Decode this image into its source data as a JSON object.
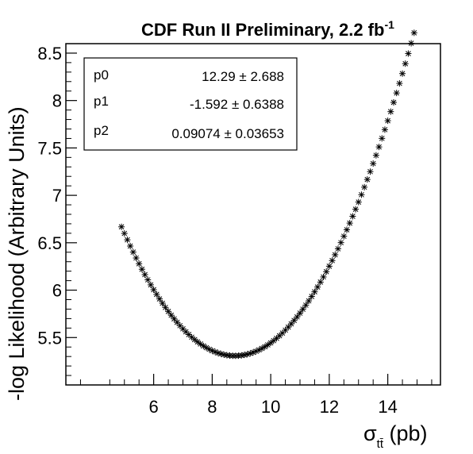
{
  "chart_data": {
    "type": "scatter",
    "title": "CDF Run II Preliminary, 2.2 fb",
    "title_superscript": "-1",
    "xlabel_symbol": "σ",
    "xlabel_subscript": "tt̄",
    "xlabel_unit": "(pb)",
    "ylabel": "-log Likelihood (Arbitrary Units)",
    "xlim": [
      3.0,
      15.8
    ],
    "ylim": [
      5.0,
      8.6
    ],
    "xticks": [
      6,
      8,
      10,
      12,
      14
    ],
    "yticks": [
      5.5,
      6,
      6.5,
      7,
      7.5,
      8,
      8.5
    ],
    "marker": "asterisk",
    "x_range": [
      4.9,
      14.9
    ],
    "x_step": 0.1,
    "curve_params": {
      "p0": 12.29,
      "p1": -1.592,
      "p2": 0.09074
    },
    "stats": [
      {
        "name": "p0",
        "value": "12.29 ± 2.688"
      },
      {
        "name": "p1",
        "value": "-1.592 ± 0.6388"
      },
      {
        "name": "p2",
        "value": "0.09074 ± 0.03653"
      }
    ]
  }
}
